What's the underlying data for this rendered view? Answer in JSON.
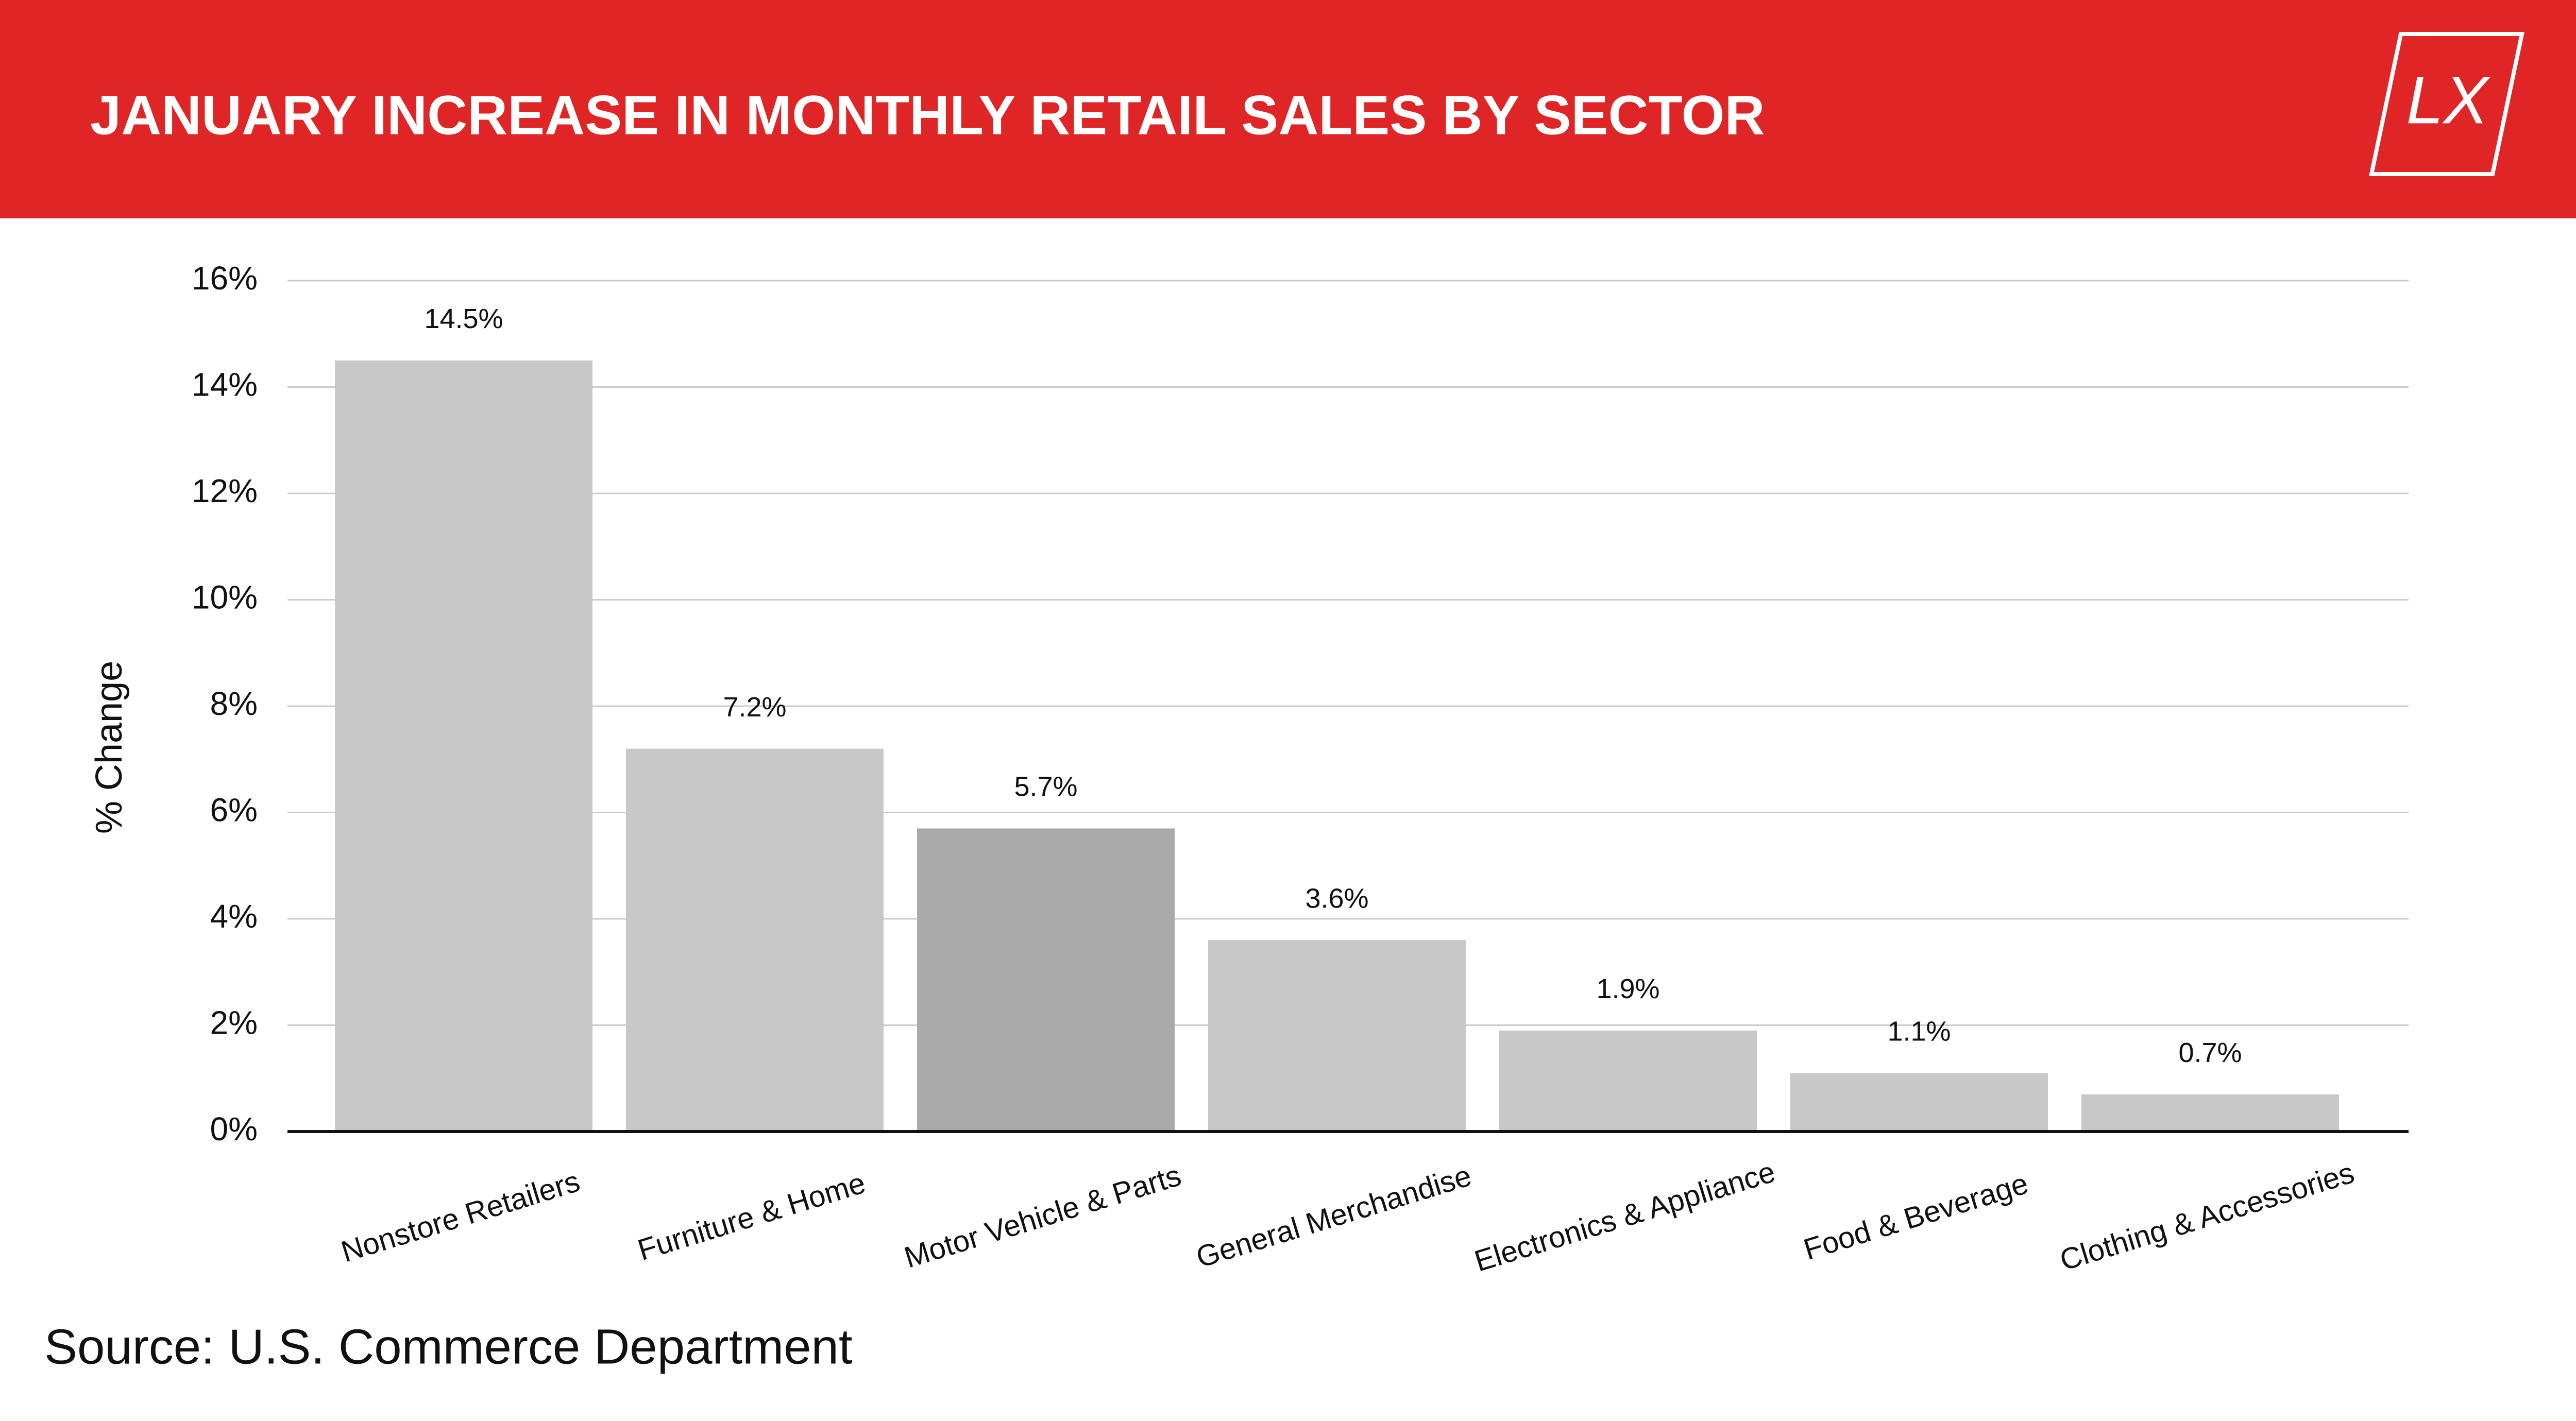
{
  "chart_data": {
    "type": "bar",
    "title": "JANUARY INCREASE IN MONTHLY RETAIL SALES BY SECTOR",
    "logo": "LX",
    "y_label": "% Change",
    "source": "Source: U.S. Commerce Department",
    "categories": [
      "Nonstore Retailers",
      "Furniture & Home",
      "Motor Vehicle & Parts",
      "General Merchandise",
      "Electronics & Appliance",
      "Food & Beverage",
      "Clothing & Accessories"
    ],
    "values": [
      14.5,
      7.2,
      5.7,
      3.6,
      1.9,
      1.1,
      0.7
    ],
    "value_labels": [
      "14.5%",
      "7.2%",
      "5.7%",
      "3.6%",
      "1.9%",
      "1.1%",
      "0.7%"
    ],
    "colors": [
      "#c8c8c8",
      "#c8c8c8",
      "#aaaaaa",
      "#c8c8c8",
      "#c8c8c8",
      "#c8c8c8",
      "#c8c8c8"
    ],
    "ylim": [
      0,
      16
    ],
    "yticks": [
      {
        "value": 0,
        "label": "0%"
      },
      {
        "value": 2,
        "label": "2%"
      },
      {
        "value": 4,
        "label": "4%"
      },
      {
        "value": 6,
        "label": "6%"
      },
      {
        "value": 8,
        "label": "8%"
      },
      {
        "value": 10,
        "label": "10%"
      },
      {
        "value": 12,
        "label": "12%"
      },
      {
        "value": 14,
        "label": "14%"
      },
      {
        "value": 16,
        "label": "16%"
      }
    ],
    "grid": true
  }
}
